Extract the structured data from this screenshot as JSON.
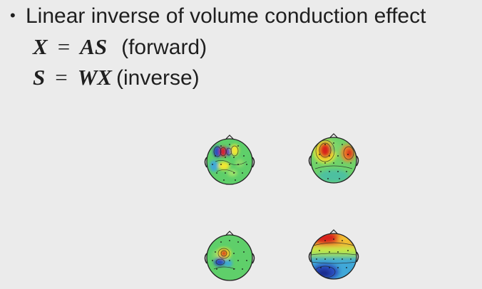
{
  "slide": {
    "bullet": "Linear inverse of volume conduction effect",
    "equations": [
      {
        "lhs": "X",
        "op": "=",
        "rhs": "AS",
        "note": "(forward)"
      },
      {
        "lhs": "S",
        "op": "=",
        "rhs": "WX",
        "note": "(inverse)"
      }
    ]
  },
  "colors": {
    "background": "#ebebeb",
    "text": "#1f1f1f",
    "map_base": "#5fcf6a",
    "map_red": "#d8241c",
    "map_yellow": "#f2e630",
    "map_blue": "#2a4cc0"
  }
}
